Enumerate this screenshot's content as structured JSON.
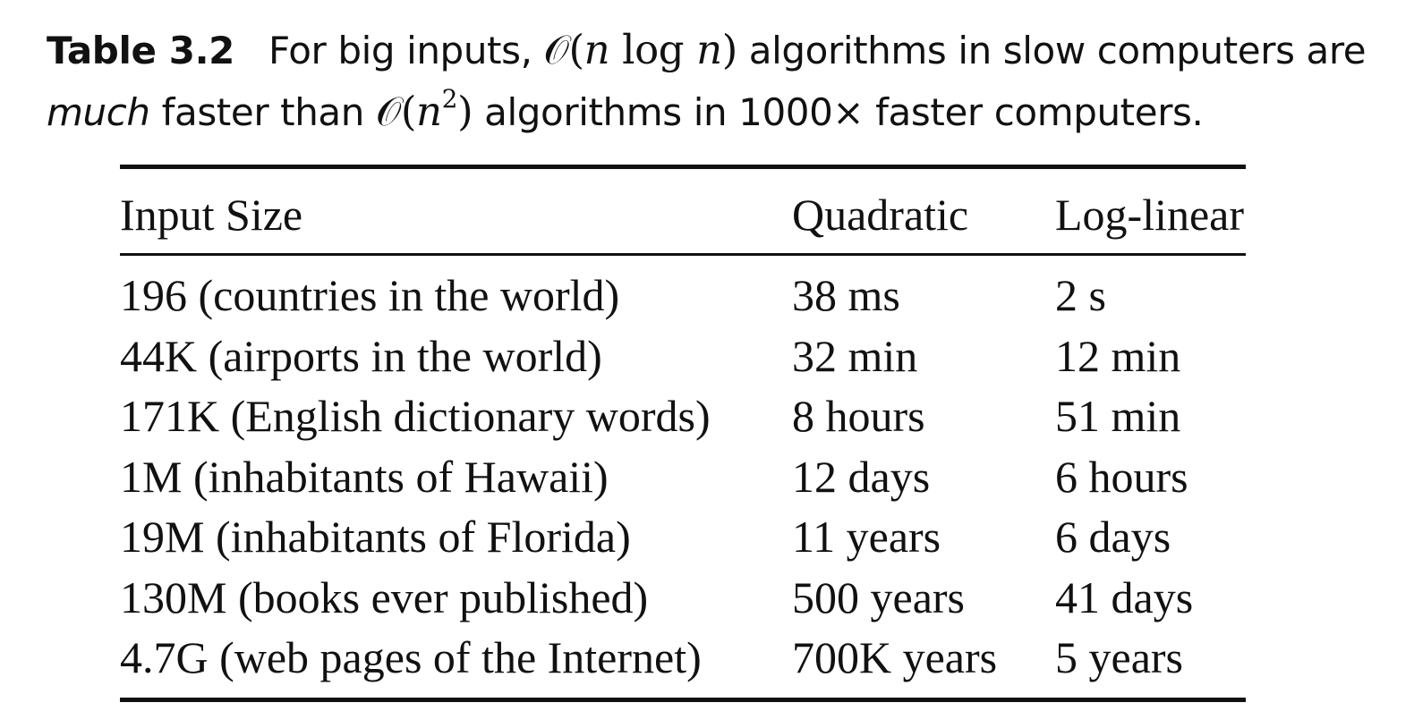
{
  "caption": {
    "label": "Table 3.2",
    "text_1": "For big inputs,",
    "math_1": {
      "O": "𝒪",
      "open": "(",
      "n1": "n",
      "log": " log ",
      "n2": "n",
      "close": ")"
    },
    "text_2": " algorithms in slow computers are ",
    "emphasis": "much",
    "text_3": " faster than ",
    "math_2": {
      "O": "𝒪",
      "open": "(",
      "n": "n",
      "exp": "2",
      "close": ")"
    },
    "text_4": " algorithms in 1000× faster computers."
  },
  "table": {
    "headers": [
      "Input Size",
      "Quadratic",
      "Log-linear"
    ],
    "rows": [
      [
        "196 (countries in the world)",
        "38 ms",
        "2 s"
      ],
      [
        "44K (airports in the world)",
        "32 min",
        "12 min"
      ],
      [
        "171K (English dictionary words)",
        "8 hours",
        "51 min"
      ],
      [
        "1M (inhabitants of Hawaii)",
        "12 days",
        "6 hours"
      ],
      [
        "19M (inhabitants of Florida)",
        "11 years",
        "6 days"
      ],
      [
        "130M (books ever published)",
        "500 years",
        "41 days"
      ],
      [
        "4.7G (web pages of the Internet)",
        "700K years",
        "5 years"
      ]
    ]
  }
}
